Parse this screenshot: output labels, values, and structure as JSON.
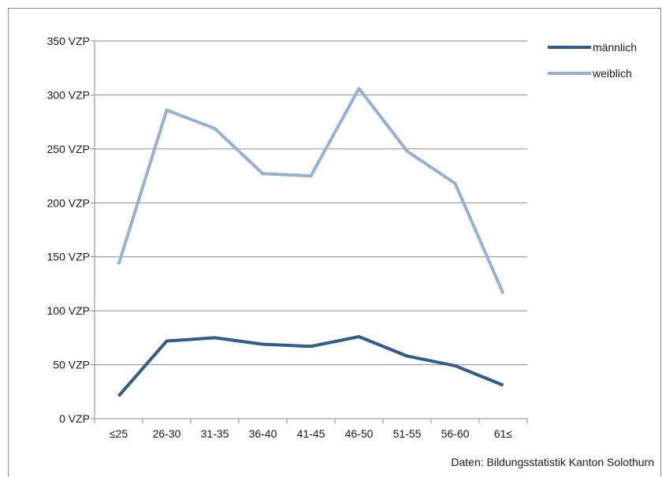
{
  "chart_data": {
    "type": "line",
    "title": "",
    "xlabel": "",
    "ylabel": "",
    "categories": [
      "≤25",
      "26-30",
      "31-35",
      "36-40",
      "41-45",
      "46-50",
      "51-55",
      "56-60",
      "61≤"
    ],
    "ylim": [
      0,
      350
    ],
    "yticks": [
      0,
      50,
      100,
      150,
      200,
      250,
      300,
      350
    ],
    "ytick_labels": [
      "0 VZP",
      "50 VZP",
      "100 VZP",
      "150 VZP",
      "200 VZP",
      "250 VZP",
      "300 VZP",
      "350 VZP"
    ],
    "grid": true,
    "legend_position": "right",
    "series": [
      {
        "name": "männlich",
        "color": "#2e5d8e",
        "values": [
          21,
          72,
          75,
          69,
          67,
          76,
          58,
          49,
          31
        ]
      },
      {
        "name": "weiblich",
        "color": "#93b2d7",
        "values": [
          143,
          286,
          269,
          227,
          225,
          306,
          248,
          218,
          116
        ]
      }
    ],
    "source": "Daten: Bildungsstatistik Kanton Solothurn"
  }
}
